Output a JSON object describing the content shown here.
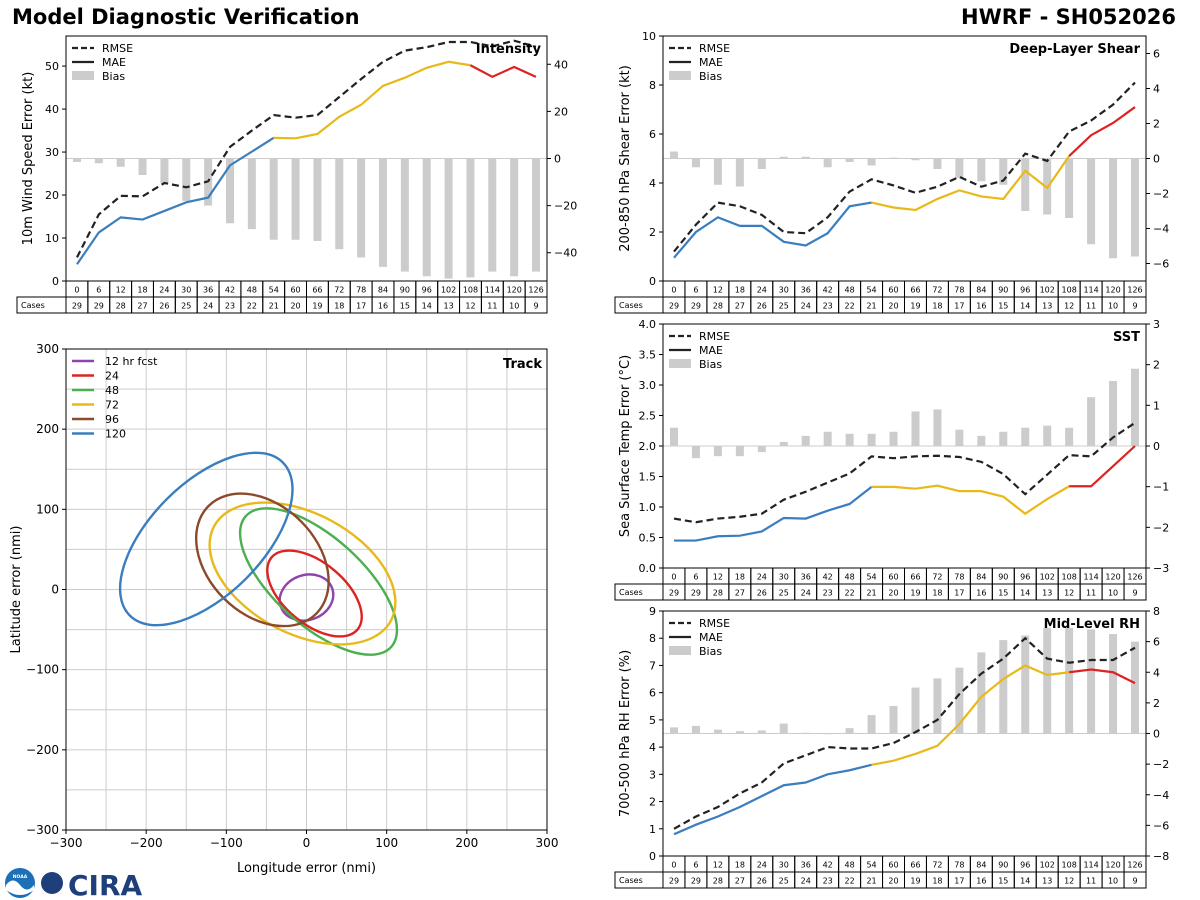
{
  "header": {
    "title": "Model Diagnostic Verification",
    "model_storm": "HWRF - SH052026"
  },
  "logos": {
    "noaa": "NOAA",
    "cira": "CIRA"
  },
  "colors": {
    "rmse": "#222222",
    "mae_lt54": "#3a7ebf",
    "mae_54_108": "#e8b919",
    "mae_gt108": "#dd2222",
    "bias": "#cccccc",
    "zero_line": "#cccccc"
  },
  "table": {
    "cases_label": "Cases",
    "hours": [
      "0",
      "6",
      "12",
      "18",
      "24",
      "30",
      "36",
      "42",
      "48",
      "54",
      "60",
      "66",
      "72",
      "78",
      "84",
      "90",
      "96",
      "102",
      "108",
      "114",
      "120",
      "126"
    ],
    "cases": [
      "29",
      "29",
      "28",
      "27",
      "26",
      "25",
      "24",
      "23",
      "22",
      "21",
      "20",
      "19",
      "18",
      "17",
      "16",
      "15",
      "14",
      "13",
      "12",
      "11",
      "10",
      "9"
    ]
  },
  "chart_data": [
    {
      "type": "line",
      "id": "intensity",
      "title": "Intensity",
      "ylabel": "10m Wind Speed Error (kt)",
      "ylim": [
        0,
        57
      ],
      "yticks": [
        "0",
        "10",
        "20",
        "30",
        "40",
        "50"
      ],
      "y2lim": [
        -52,
        52
      ],
      "y2ticks": [
        "−40",
        "−20",
        "0",
        "20",
        "40"
      ],
      "x": [
        0,
        6,
        12,
        18,
        24,
        30,
        36,
        42,
        48,
        54,
        60,
        66,
        72,
        78,
        84,
        90,
        96,
        102,
        108,
        114,
        120,
        126
      ],
      "legend": [
        "RMSE",
        "MAE",
        "Bias"
      ],
      "series": [
        {
          "name": "RMSE",
          "values": [
            5.5,
            15.5,
            19.8,
            19.7,
            22.8,
            21.8,
            23.2,
            31.2,
            35.0,
            38.6,
            38.0,
            38.6,
            42.8,
            47.0,
            51.0,
            53.6,
            54.4,
            55.6,
            55.6,
            54.6,
            55.9,
            54.5
          ]
        },
        {
          "name": "MAE",
          "values": [
            3.9,
            11.3,
            14.8,
            14.3,
            16.3,
            18.3,
            19.4,
            26.9,
            30.1,
            33.3,
            33.2,
            34.2,
            38.2,
            41.0,
            45.4,
            47.3,
            49.6,
            51.0,
            50.2,
            47.5,
            49.8,
            47.5
          ]
        },
        {
          "name": "Bias",
          "values": [
            -1.5,
            -2.0,
            -3.5,
            -7.0,
            -10.5,
            -18.0,
            -20.0,
            -27.5,
            -30.0,
            -34.5,
            -34.5,
            -35.0,
            -38.5,
            -42.0,
            -46.0,
            -48.0,
            -50.0,
            -51.0,
            -50.5,
            -48.0,
            -50.0,
            -48.0
          ]
        }
      ]
    },
    {
      "type": "line",
      "id": "shear",
      "title": "Deep-Layer Shear",
      "ylabel": "200-850 hPa Shear Error (kt)",
      "ylim": [
        0,
        10
      ],
      "yticks": [
        "0",
        "2",
        "4",
        "6",
        "8",
        "10"
      ],
      "y2lim": [
        -7,
        7
      ],
      "y2ticks": [
        "−6",
        "−4",
        "−2",
        "0",
        "2",
        "4",
        "6"
      ],
      "x": [
        0,
        6,
        12,
        18,
        24,
        30,
        36,
        42,
        48,
        54,
        60,
        66,
        72,
        78,
        84,
        90,
        96,
        102,
        108,
        114,
        120,
        126
      ],
      "legend": [
        "RMSE",
        "MAE",
        "Bias"
      ],
      "series": [
        {
          "name": "RMSE",
          "values": [
            1.2,
            2.3,
            3.2,
            3.05,
            2.7,
            2.0,
            1.95,
            2.6,
            3.65,
            4.15,
            3.9,
            3.6,
            3.85,
            4.25,
            3.85,
            4.1,
            5.2,
            4.9,
            6.1,
            6.55,
            7.2,
            8.1
          ]
        },
        {
          "name": "MAE",
          "values": [
            0.95,
            2.0,
            2.6,
            2.25,
            2.25,
            1.6,
            1.45,
            1.95,
            3.05,
            3.2,
            3.0,
            2.9,
            3.35,
            3.7,
            3.45,
            3.35,
            4.5,
            3.8,
            5.1,
            5.95,
            6.45,
            7.1
          ]
        },
        {
          "name": "Bias",
          "values": [
            0.4,
            -0.5,
            -1.5,
            -1.6,
            -0.6,
            0.1,
            0.1,
            -0.5,
            -0.2,
            -0.4,
            0.05,
            -0.1,
            -0.6,
            -1.1,
            -1.3,
            -1.5,
            -3.0,
            -3.2,
            -3.4,
            -4.9,
            -5.7,
            -5.6
          ]
        }
      ]
    },
    {
      "type": "line",
      "id": "sst",
      "title": "SST",
      "ylabel": "Sea Surface Temp Error (°C)",
      "ylim": [
        0,
        4
      ],
      "yticks": [
        "0.0",
        "0.5",
        "1.0",
        "1.5",
        "2.0",
        "2.5",
        "3.0",
        "3.5",
        "4.0"
      ],
      "y2lim": [
        -3,
        3
      ],
      "y2ticks": [
        "−3",
        "−2",
        "−1",
        "0",
        "1",
        "2",
        "3"
      ],
      "x": [
        0,
        6,
        12,
        18,
        24,
        30,
        36,
        42,
        48,
        54,
        60,
        66,
        72,
        78,
        84,
        90,
        96,
        102,
        108,
        114,
        120,
        126
      ],
      "legend": [
        "RMSE",
        "MAE",
        "Bias"
      ],
      "series": [
        {
          "name": "RMSE",
          "values": [
            0.81,
            0.75,
            0.81,
            0.84,
            0.89,
            1.12,
            1.25,
            1.4,
            1.55,
            1.83,
            1.8,
            1.83,
            1.84,
            1.82,
            1.74,
            1.54,
            1.21,
            1.53,
            1.85,
            1.83,
            2.14,
            2.38
          ]
        },
        {
          "name": "MAE",
          "values": [
            0.45,
            0.45,
            0.52,
            0.53,
            0.6,
            0.82,
            0.81,
            0.94,
            1.05,
            1.33,
            1.33,
            1.3,
            1.35,
            1.26,
            1.26,
            1.17,
            0.89,
            1.13,
            1.34,
            1.34,
            1.67,
            2.0
          ]
        },
        {
          "name": "Bias",
          "values": [
            0.45,
            -0.3,
            -0.25,
            -0.25,
            -0.15,
            0.1,
            0.25,
            0.35,
            0.3,
            0.3,
            0.35,
            0.85,
            0.9,
            0.4,
            0.25,
            0.35,
            0.45,
            0.5,
            0.45,
            1.2,
            1.6,
            1.9
          ]
        }
      ]
    },
    {
      "type": "line",
      "id": "rh",
      "title": "Mid-Level RH",
      "ylabel": "700-500 hPa RH Error (%)",
      "ylim": [
        0,
        9
      ],
      "yticks": [
        "0",
        "1",
        "2",
        "3",
        "4",
        "5",
        "6",
        "7",
        "8",
        "9"
      ],
      "y2lim": [
        -8,
        8
      ],
      "y2ticks": [
        "−8",
        "−6",
        "−4",
        "−2",
        "0",
        "2",
        "4",
        "6",
        "8"
      ],
      "x": [
        0,
        6,
        12,
        18,
        24,
        30,
        36,
        42,
        48,
        54,
        60,
        66,
        72,
        78,
        84,
        90,
        96,
        102,
        108,
        114,
        120,
        126
      ],
      "legend": [
        "RMSE",
        "MAE",
        "Bias"
      ],
      "series": [
        {
          "name": "RMSE",
          "values": [
            1.0,
            1.45,
            1.8,
            2.3,
            2.7,
            3.4,
            3.7,
            4.0,
            3.95,
            3.95,
            4.15,
            4.55,
            5.0,
            5.95,
            6.7,
            7.25,
            8.0,
            7.25,
            7.1,
            7.2,
            7.2,
            7.65
          ]
        },
        {
          "name": "MAE",
          "values": [
            0.8,
            1.15,
            1.45,
            1.8,
            2.2,
            2.6,
            2.7,
            3.0,
            3.15,
            3.35,
            3.5,
            3.75,
            4.05,
            4.85,
            5.85,
            6.5,
            7.0,
            6.65,
            6.75,
            6.85,
            6.75,
            6.35
          ]
        },
        {
          "name": "Bias",
          "values": [
            0.4,
            0.5,
            0.25,
            0.15,
            0.2,
            0.65,
            0.05,
            -0.05,
            0.35,
            1.2,
            1.8,
            3.0,
            3.6,
            4.3,
            5.3,
            6.1,
            6.4,
            6.9,
            6.9,
            6.8,
            6.5,
            6.0
          ]
        }
      ]
    },
    {
      "type": "ellipse",
      "id": "track",
      "title": "Track",
      "xlabel": "Longitude error (nmi)",
      "ylabel": "Latitude error (nmi)",
      "xlim": [
        -300,
        300
      ],
      "ylim": [
        -300,
        300
      ],
      "xticks": [
        "−300",
        "−200",
        "−100",
        "0",
        "100",
        "200",
        "300"
      ],
      "yticks": [
        "−300",
        "−200",
        "−100",
        "0",
        "100",
        "200",
        "300"
      ],
      "grid": true,
      "legend": [
        "12 hr fcst",
        "24",
        "48",
        "72",
        "96",
        "120"
      ],
      "series": [
        {
          "name": "12 hr fcst",
          "color": "#8e44ad",
          "center": [
            0,
            -10
          ],
          "semi_major": 34,
          "semi_minor": 28,
          "angle": 20
        },
        {
          "name": "24",
          "color": "#dd2222",
          "center": [
            10,
            -5
          ],
          "semi_major": 70,
          "semi_minor": 38,
          "angle": -40
        },
        {
          "name": "48",
          "color": "#4caf50",
          "center": [
            15,
            10
          ],
          "semi_major": 122,
          "semi_minor": 55,
          "angle": -42
        },
        {
          "name": "72",
          "color": "#e8b919",
          "center": [
            -5,
            20
          ],
          "semi_major": 125,
          "semi_minor": 75,
          "angle": -28
        },
        {
          "name": "96",
          "color": "#8b4a2b",
          "center": [
            -55,
            37
          ],
          "semi_major": 95,
          "semi_minor": 68,
          "angle": -45
        },
        {
          "name": "120",
          "color": "#3a7ebf",
          "center": [
            -125,
            63
          ],
          "semi_major": 135,
          "semi_minor": 70,
          "angle": 45
        }
      ]
    }
  ]
}
